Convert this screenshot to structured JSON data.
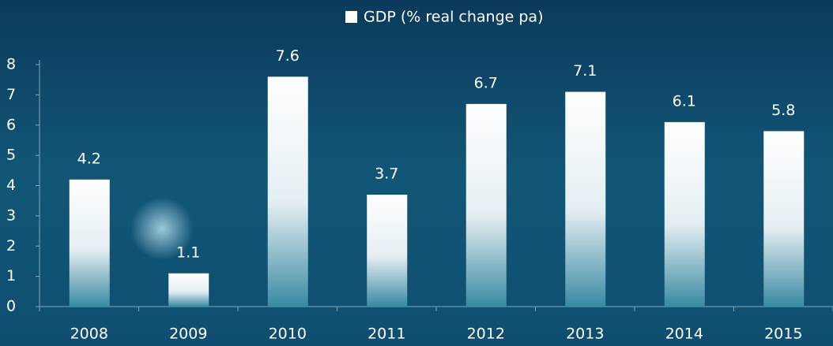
{
  "chart_data": {
    "type": "bar",
    "categories": [
      "2008",
      "2009",
      "2010",
      "2011",
      "2012",
      "2013",
      "2014",
      "2015"
    ],
    "series": [
      {
        "name": "GDP (% real change pa)",
        "color": "#ffffff",
        "values": [
          4.2,
          1.1,
          7.6,
          3.7,
          6.7,
          7.1,
          6.1,
          5.8
        ]
      }
    ],
    "ylim": [
      0,
      8
    ],
    "yticks": [
      0,
      1,
      2,
      3,
      4,
      5,
      6,
      7,
      8
    ],
    "legend": "top"
  }
}
